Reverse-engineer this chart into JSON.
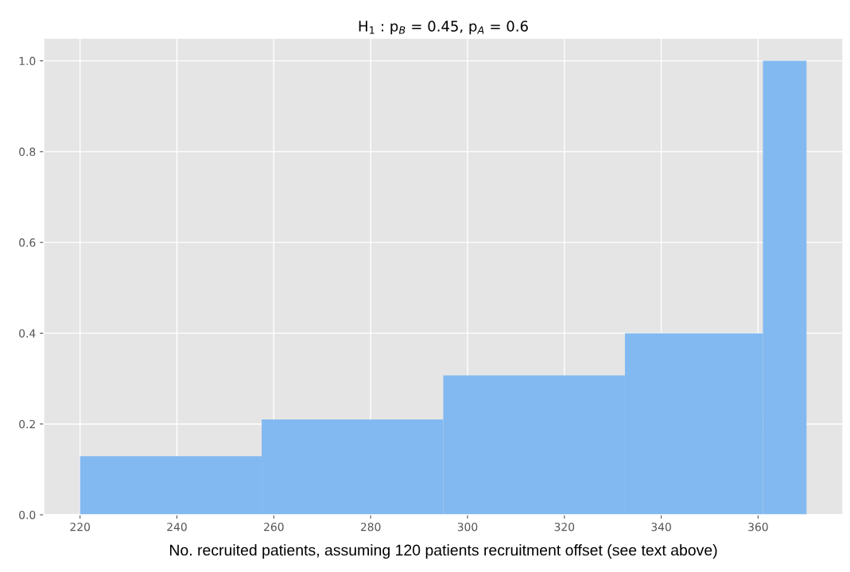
{
  "chart_data": {
    "type": "histogram",
    "title": "H$_{1}$ : p$_{B}$ = 0.45, p$_{A}$ = 0.6",
    "xlabel": "No. recruited patients, assuming 120 patients recruitment offset (see text above)",
    "bins": [
      220,
      257.5,
      295,
      332.5,
      361,
      370
    ],
    "values": [
      0.129,
      0.21,
      0.307,
      0.4,
      1.0
    ],
    "color": "#82b9f0",
    "xlim": [
      212.5,
      377.5
    ],
    "xticks": [
      220,
      240,
      260,
      280,
      300,
      320,
      340,
      360
    ],
    "ylim": [
      0,
      1.05
    ],
    "yticks": [
      {
        "value": 0,
        "label": "0.0"
      },
      {
        "value": 0.2,
        "label": "0.2"
      },
      {
        "value": 0.4,
        "label": "0.4"
      },
      {
        "value": 0.6,
        "label": "0.6"
      },
      {
        "value": 0.8,
        "label": "0.8"
      },
      {
        "value": 1.0,
        "label": "1.0"
      }
    ],
    "grid": true
  }
}
